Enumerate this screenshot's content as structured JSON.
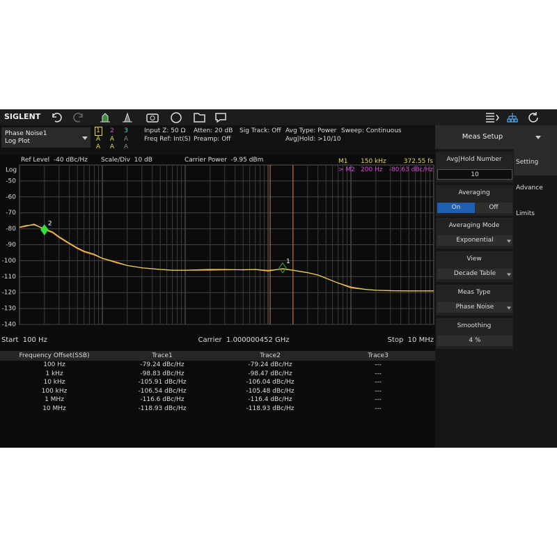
{
  "toolbar": {
    "brand": "SIGLENT"
  },
  "header": {
    "measurement": "Phase Noise1",
    "view": "Log Plot",
    "traces": [
      {
        "number": "1",
        "modes": [
          "A",
          "A"
        ],
        "color": "#e8d84a"
      },
      {
        "number": "2",
        "modes": [
          "A",
          "A"
        ],
        "color": "#d94ad9"
      },
      {
        "number": "3",
        "modes": [
          "A",
          "A"
        ],
        "color": "#4ad9d9"
      }
    ],
    "info": [
      [
        "Input Z: 50 Ω",
        "Freq Ref: Int(S)"
      ],
      [
        "Atten: 20 dB",
        "Preamp: Off"
      ],
      [
        "Sig Track: Off"
      ],
      [
        "Avg Type: Power",
        "Avg|Hold: >10/10"
      ],
      [
        "Sweep: Continuous"
      ]
    ]
  },
  "plot": {
    "ref_level": "Ref Level  -40 dBc/Hz",
    "scale": "Scale/Div  10 dB",
    "carrier_power": "Carrier Power  -9.95 dBm",
    "readouts": [
      {
        "name": "M1",
        "x": "150 kHz",
        "y": "372.55 fs",
        "color": "#e8d84a"
      },
      {
        "name": "> M2",
        "x": "200 Hz",
        "y": "-80.63 dBc/Hz",
        "color": "#d94ad9"
      }
    ],
    "start": "Start  100 Hz",
    "carrier": "Carrier  1.000000452 GHz",
    "stop": "Stop  10 MHz"
  },
  "chart_data": {
    "type": "line",
    "x_scale": "log",
    "y_label": "Log",
    "xlim": [
      100,
      10000000
    ],
    "ylim": [
      -140,
      -40
    ],
    "yticks": [
      -50,
      -60,
      -70,
      -80,
      -90,
      -100,
      -110,
      -120,
      -130,
      -140
    ],
    "grid": true,
    "x": [
      100,
      120,
      150,
      200,
      250,
      300,
      400,
      500,
      600,
      800,
      1000,
      1500,
      2000,
      3000,
      5000,
      7000,
      10000,
      20000,
      30000,
      50000,
      70000,
      100000,
      150000,
      200000,
      300000,
      400000,
      500000,
      700000,
      1000000,
      1500000,
      2000000,
      3000000,
      5000000,
      7000000,
      10000000
    ],
    "series": [
      {
        "color": "#e07a50",
        "values": [
          -79.2,
          -78.5,
          -77,
          -80.6,
          -82.5,
          -85.5,
          -89.5,
          -92.5,
          -94.5,
          -96.5,
          -98.5,
          -101.5,
          -103,
          -104.5,
          -105.5,
          -106,
          -106,
          -106,
          -105.8,
          -105.6,
          -105.5,
          -106,
          -105.3,
          -106,
          -107.5,
          -109,
          -111,
          -114,
          -116.4,
          -118,
          -118.5,
          -118.8,
          -118.9,
          -119,
          -118.9
        ]
      },
      {
        "color": "#e8d84a",
        "values": [
          -79,
          -78,
          -77.5,
          -80,
          -82,
          -85,
          -89,
          -92,
          -94,
          -96,
          -98.5,
          -101,
          -103,
          -104.5,
          -105.5,
          -106,
          -106,
          -105.5,
          -105.5,
          -105.8,
          -105.5,
          -106.5,
          -105,
          -106,
          -107.5,
          -109,
          -111,
          -114,
          -117,
          -118,
          -118.5,
          -118.8,
          -119,
          -119,
          -119
        ]
      }
    ],
    "markers": [
      {
        "label": "1",
        "x": 150000,
        "y": -104.5,
        "color": "#3a9a3a",
        "filled": false
      },
      {
        "label": "2",
        "x": 200,
        "y": -80.63,
        "color": "#3ae03a",
        "filled": true
      }
    ],
    "band_lines": {
      "x": [
        106000,
        200000
      ],
      "color": "#e0803a"
    }
  },
  "table": {
    "header": [
      "Frequency Offset(SSB)",
      "Trace1",
      "Trace2",
      "Trace3"
    ],
    "rows": [
      [
        "100 Hz",
        "-79.24 dBc/Hz",
        "-79.24 dBc/Hz",
        "---"
      ],
      [
        "1 kHz",
        "-98.83 dBc/Hz",
        "-98.47 dBc/Hz",
        "---"
      ],
      [
        "10 kHz",
        "-105.91 dBc/Hz",
        "-106.04 dBc/Hz",
        "---"
      ],
      [
        "100 kHz",
        "-106.54 dBc/Hz",
        "-105.48 dBc/Hz",
        "---"
      ],
      [
        "1 MHz",
        "-116.6 dBc/Hz",
        "-116.4 dBc/Hz",
        "---"
      ],
      [
        "10 MHz",
        "-118.93 dBc/Hz",
        "-118.93 dBc/Hz",
        "---"
      ]
    ]
  },
  "panel": {
    "title": "Meas Setup",
    "tabs": [
      "Setting",
      "Advance",
      "Limits"
    ],
    "items": [
      {
        "title": "Avg|Hold Number",
        "value": "10",
        "input": true
      },
      {
        "title": "Averaging",
        "options": [
          "On",
          "Off"
        ],
        "selected": 0
      },
      {
        "title": "Averaging Mode",
        "value": "Exponential",
        "dropdown": true
      },
      {
        "title": "View",
        "value": "Decade Table",
        "dropdown": true
      },
      {
        "title": "Meas Type",
        "value": "Phase Noise",
        "dropdown": true
      },
      {
        "title": "Smoothing",
        "value": "4 %"
      }
    ]
  }
}
